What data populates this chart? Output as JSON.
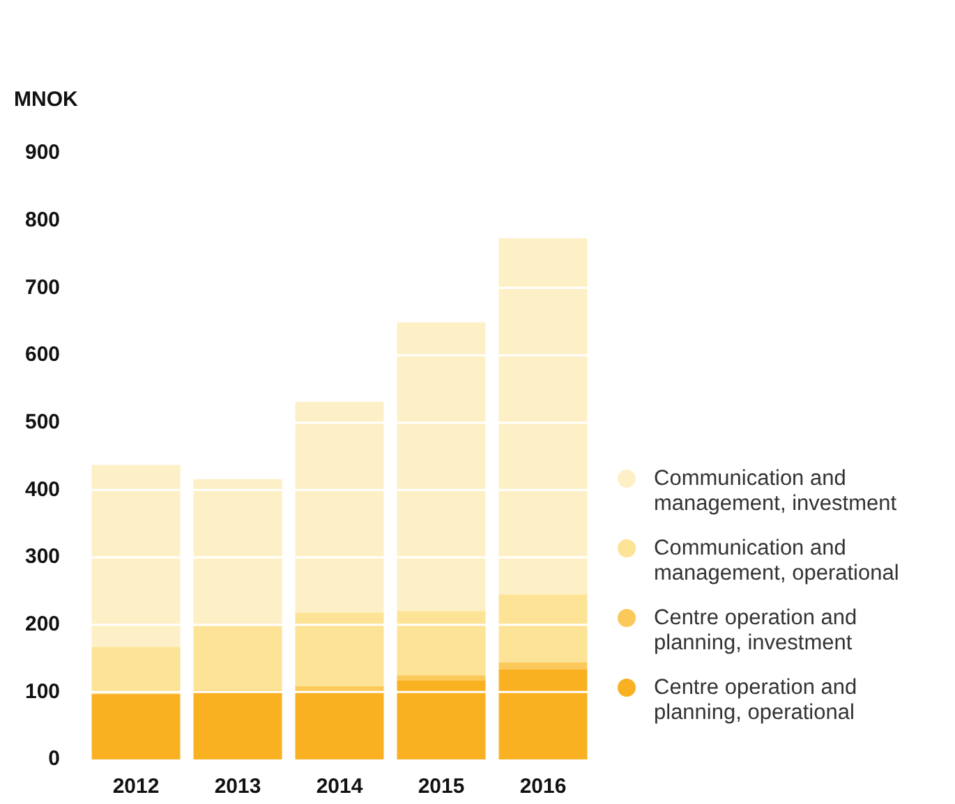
{
  "chart_data": {
    "type": "bar",
    "stacked": true,
    "ylabel": "MNOK",
    "categories": [
      "2012",
      "2013",
      "2014",
      "2015",
      "2016"
    ],
    "series": [
      {
        "name": "Centre operation and planning, operational",
        "color": "#f9b122",
        "values": [
          97,
          102,
          100,
          117,
          134
        ]
      },
      {
        "name": "Centre operation and planning, investment",
        "color": "#fbc95a",
        "values": [
          0,
          0,
          9,
          8,
          10
        ]
      },
      {
        "name": "Communication and management, operational",
        "color": "#fde395",
        "values": [
          70,
          96,
          109,
          95,
          101
        ]
      },
      {
        "name": "Communication and management, investment",
        "color": "#fef0c6",
        "values": [
          270,
          218,
          313,
          429,
          529
        ]
      }
    ],
    "ylim": [
      0,
      900
    ],
    "yticks": [
      0,
      100,
      200,
      300,
      400,
      500,
      600,
      700,
      800,
      900
    ],
    "grid": "y",
    "legend": "right"
  }
}
